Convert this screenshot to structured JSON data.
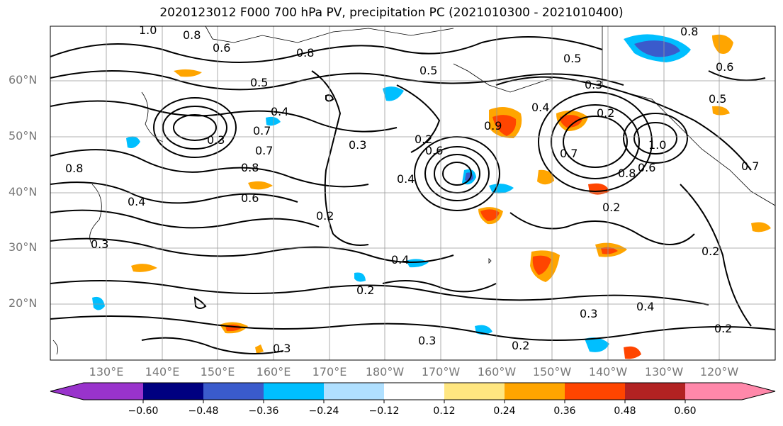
{
  "title": "2020123012 F000 700 hPa PV, precipitation PC (2021010300 - 2021010400)",
  "lat_labels": [
    "60°N",
    "50°N",
    "40°N",
    "30°N",
    "20°N"
  ],
  "lon_labels": [
    "130°E",
    "140°E",
    "150°E",
    "160°E",
    "170°E",
    "180°W",
    "170°W",
    "160°W",
    "150°W",
    "140°W",
    "130°W",
    "120°W"
  ],
  "contour_labels": [
    "1.0",
    "0.8",
    "0.6",
    "0.8",
    "0.5",
    "0.3",
    "0.5",
    "0.7",
    "0.4",
    "0.3",
    "0.7",
    "0.8",
    "0.6",
    "0.4",
    "0.2",
    "0.3",
    "0.6",
    "0.4",
    "0.9",
    "0.4",
    "0.2",
    "0.5",
    "0.3",
    "0.2",
    "0.7",
    "0.8",
    "0.6",
    "1.0",
    "0.2",
    "0.7",
    "0.2",
    "0.4",
    "0.2",
    "0.3",
    "0.3",
    "0.2",
    "0.3",
    "0.5",
    "0.4",
    "0.2",
    "0.8",
    "0.8",
    "0.6"
  ],
  "colorbar": {
    "colors": [
      "#9933cc",
      "#000080",
      "#3a5bcc",
      "#00bfff",
      "#b0e0ff",
      "#ffffff",
      "#ffe680",
      "#ffa500",
      "#ff4500",
      "#b22222",
      "#ff88aa"
    ],
    "tick_labels": [
      "−0.60",
      "−0.48",
      "−0.36",
      "−0.24",
      "−0.12",
      "0.12",
      "0.24",
      "0.36",
      "0.48",
      "0.60"
    ]
  }
}
